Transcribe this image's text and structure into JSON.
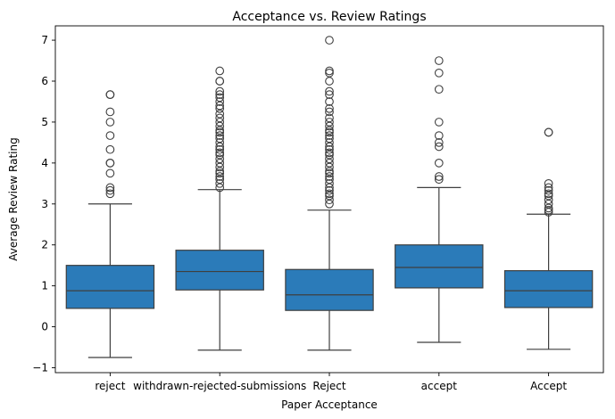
{
  "chart_data": {
    "type": "box",
    "title": "Acceptance vs. Review Ratings",
    "xlabel": "Paper Acceptance",
    "ylabel": "Average Review Rating",
    "ylim": [
      -1.12,
      7.35
    ],
    "yticks": [
      -1,
      0,
      1,
      2,
      3,
      4,
      5,
      6,
      7
    ],
    "grid": false,
    "box_color": "#2b7bb9",
    "line_color": "#3f3f3f",
    "categories": [
      "reject",
      "withdrawn-rejected-submissions",
      "Reject",
      "accept",
      "Accept"
    ],
    "boxes": [
      {
        "category": "reject",
        "whisker_low": -0.75,
        "q1": 0.45,
        "median": 0.88,
        "q3": 1.5,
        "whisker_high": 3.0,
        "outliers": [
          3.25,
          3.33,
          3.4,
          3.75,
          4.0,
          4.0,
          4.33,
          4.67,
          5.0,
          5.25,
          5.67,
          5.67
        ]
      },
      {
        "category": "withdrawn-rejected-submissions",
        "whisker_low": -0.57,
        "q1": 0.9,
        "median": 1.35,
        "q3": 1.87,
        "whisker_high": 3.35,
        "outliers": [
          3.4,
          3.5,
          3.6,
          3.67,
          3.75,
          3.8,
          3.9,
          4.0,
          4.1,
          4.2,
          4.25,
          4.33,
          4.4,
          4.5,
          4.6,
          4.67,
          4.75,
          4.8,
          4.9,
          5.0,
          5.1,
          5.2,
          5.33,
          5.4,
          5.5,
          5.6,
          5.67,
          5.75,
          6.0,
          6.0,
          6.25
        ]
      },
      {
        "category": "Reject",
        "whisker_low": -0.57,
        "q1": 0.4,
        "median": 0.78,
        "q3": 1.4,
        "whisker_high": 2.85,
        "outliers": [
          3.0,
          3.1,
          3.2,
          3.25,
          3.33,
          3.4,
          3.5,
          3.6,
          3.67,
          3.75,
          3.8,
          3.9,
          4.0,
          4.1,
          4.2,
          4.25,
          4.33,
          4.4,
          4.5,
          4.6,
          4.67,
          4.75,
          4.8,
          4.9,
          5.0,
          5.1,
          5.25,
          5.33,
          5.5,
          5.67,
          5.75,
          6.0,
          6.2,
          6.25,
          7.0
        ]
      },
      {
        "category": "accept",
        "whisker_low": -0.38,
        "q1": 0.95,
        "median": 1.45,
        "q3": 2.0,
        "whisker_high": 3.4,
        "outliers": [
          3.6,
          3.67,
          4.0,
          4.4,
          4.5,
          4.67,
          5.0,
          5.8,
          6.2,
          6.5
        ]
      },
      {
        "category": "Accept",
        "whisker_low": -0.55,
        "q1": 0.47,
        "median": 0.88,
        "q3": 1.37,
        "whisker_high": 2.75,
        "outliers": [
          2.8,
          2.85,
          2.9,
          3.0,
          3.1,
          3.2,
          3.25,
          3.33,
          3.4,
          3.5,
          4.75,
          4.75
        ]
      }
    ]
  }
}
